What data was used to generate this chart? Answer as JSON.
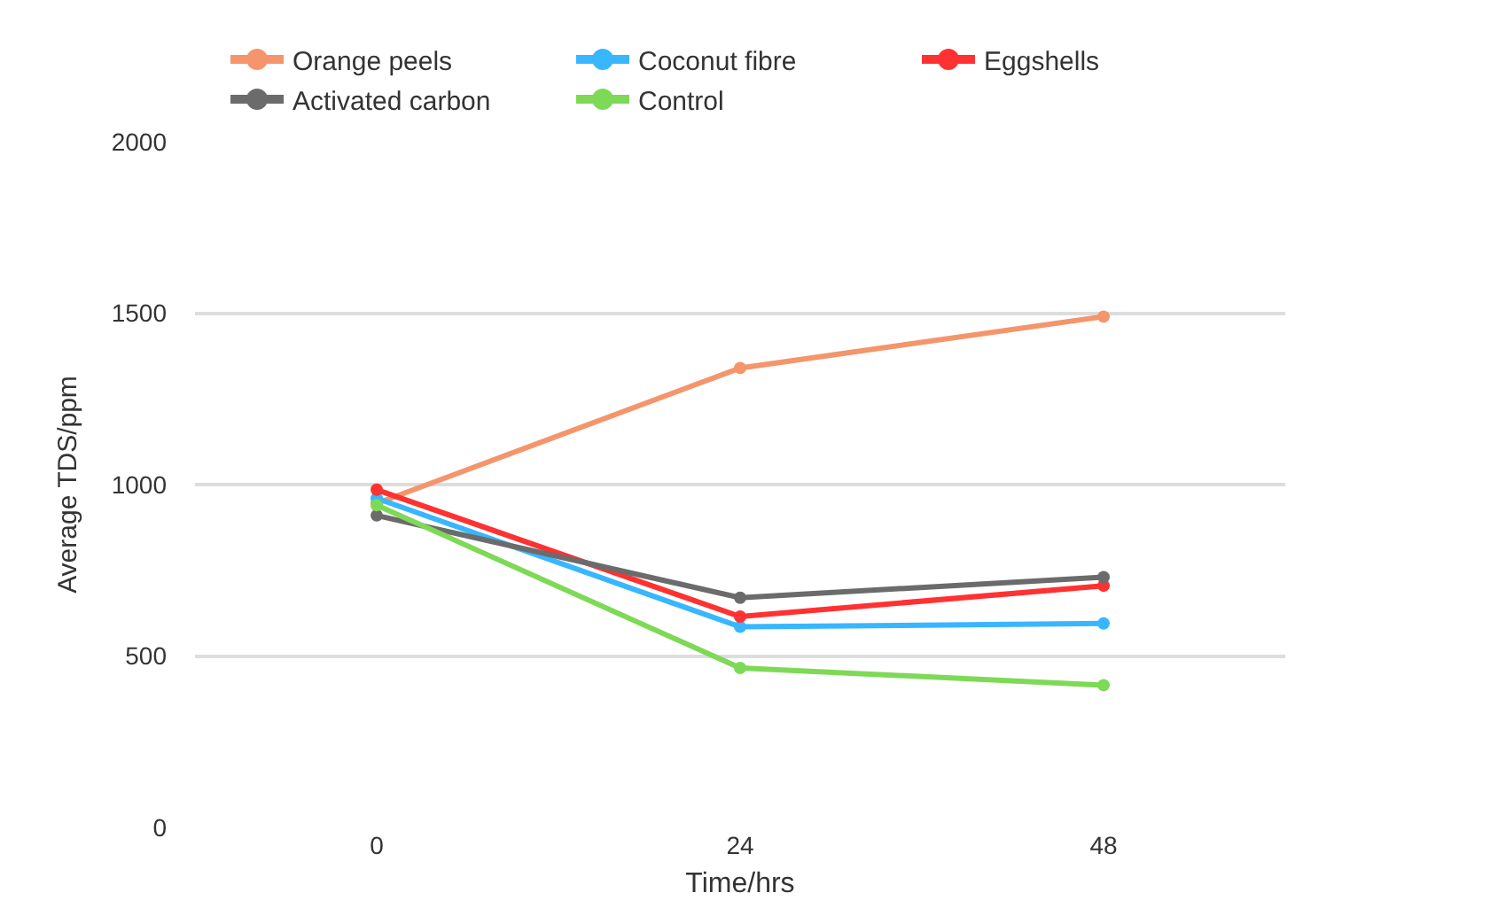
{
  "chart_data": {
    "type": "line",
    "xlabel": "Time/hrs",
    "ylabel": "Average TDS/ppm",
    "categories": [
      "0",
      "24",
      "48"
    ],
    "series": [
      {
        "name": "Orange peels",
        "color": "#f4956b",
        "values": [
          945,
          1340,
          1490
        ]
      },
      {
        "name": "Coconut fibre",
        "color": "#38b6ff",
        "values": [
          960,
          585,
          595
        ]
      },
      {
        "name": "Eggshells",
        "color": "#ff3131",
        "values": [
          985,
          615,
          705
        ]
      },
      {
        "name": "Activated carbon",
        "color": "#6b6b6b",
        "values": [
          910,
          670,
          730
        ]
      },
      {
        "name": "Control",
        "color": "#7ed957",
        "values": [
          940,
          465,
          415
        ]
      }
    ],
    "ylim": [
      0,
      2000
    ],
    "yticks": [
      0,
      500,
      1000,
      1500,
      2000
    ],
    "grid": "y",
    "legend": "top",
    "marker": "circle",
    "line_style": "solid"
  }
}
